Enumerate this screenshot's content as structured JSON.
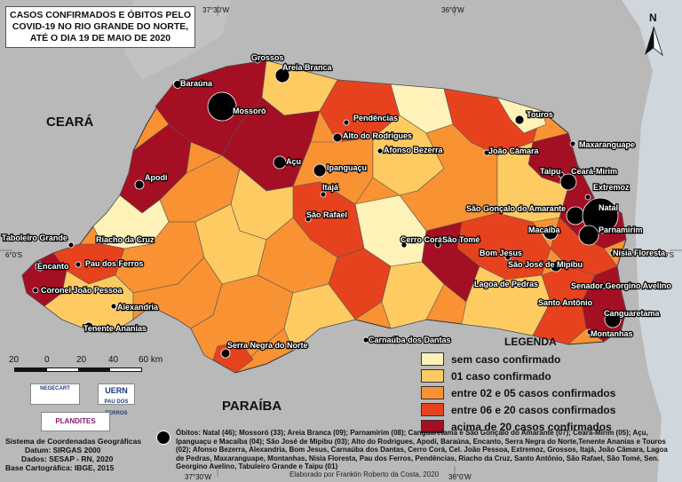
{
  "title": "CASOS CONFIRMADOS E ÓBITOS PELO COVID-19 NO RIO GRANDE DO NORTE, ATÉ O DIA 19 DE MAIO DE 2020",
  "states": {
    "ceara": "CEARÁ",
    "paraiba": "PARAÍBA"
  },
  "coords": {
    "top_left": "37°30'W",
    "top_right": "36°0'W",
    "bottom_left": "37°30'W",
    "bottom_right": "36°0'W",
    "left_lat": "6°0'S",
    "right_lat": "6°0'S"
  },
  "north": "N",
  "scale": {
    "ticks": [
      "20",
      "0",
      "20",
      "40",
      "60 km"
    ]
  },
  "legend": {
    "title": "LEGENDA",
    "items": [
      {
        "label": "sem caso confirmado",
        "color": "#fff2b8"
      },
      {
        "label": "01 caso confirmado",
        "color": "#fecb63"
      },
      {
        "label": "entre 02 e 05 casos confirmados",
        "color": "#f89233"
      },
      {
        "label": "entre 06 e 20 casos confirmados",
        "color": "#e7421e"
      },
      {
        "label": "acima de 20 casos confirmados",
        "color": "#a50f23"
      }
    ]
  },
  "logos": {
    "negecart": "NEGECART",
    "uern": "UERN",
    "uern_sub": "PAU DOS FERROS",
    "plandites": "PLANDITES"
  },
  "sys_info": {
    "line1": "Sistema de Coordenadas Geográficas",
    "line2": "Datum: SIRGAS 2000",
    "line3": "Dados: SESAP - RN, 2020",
    "line4": "Base Cartográfica: IBGE, 2015"
  },
  "obitos_text": "Óbitos: Natal (46); Mossoró (33); Areia Branca (09); Parnamirim (08); Canguaretama e São Gonçalo do Amarante (07); Ceará-Mirim (05); Açu, Ipanguaçu e Macaíba (04); São José de Mipibu (03); Alto do Rodrigues, Apodi, Baraúna, Encanto, Serra Negra do Norte,Tenente Ananias e Touros (02); Afonso Bezerra, Alexandria, Bom Jesus, Carnaúba dos Dantas, Cerro Corá, Cel. João Pessoa, Extremoz, Grossos, Itajá, João Câmara, Lagoa de Pedras, Maxaranguape, Montanhas, Nísia Floresta, Pau dos Ferros, Pendências, Riacho da Cruz, Santo Antônio, São Rafael, São Tomé, Sen. Georgino Avelino, Tabuleiro Grande e Taipu (01)",
  "credit": "Elaborado por Franklin Roberto da Costa, 2020",
  "places": [
    {
      "name": "Grossos"
    },
    {
      "name": "Areia Branca"
    },
    {
      "name": "Baraúna"
    },
    {
      "name": "Mossoró"
    },
    {
      "name": "Pendências"
    },
    {
      "name": "Alto do Rodrigues"
    },
    {
      "name": "Afonso Bezerra"
    },
    {
      "name": "Touros"
    },
    {
      "name": "Maxaranguape"
    },
    {
      "name": "João Câmara"
    },
    {
      "name": "Apodi"
    },
    {
      "name": "Açu"
    },
    {
      "name": "Ipanguaçu"
    },
    {
      "name": "Itajá"
    },
    {
      "name": "Taipu"
    },
    {
      "name": "Ceará-Mirim"
    },
    {
      "name": "Extremoz"
    },
    {
      "name": "São Rafael"
    },
    {
      "name": "São Gonçalo do Amarante"
    },
    {
      "name": "Natal"
    },
    {
      "name": "Parnamirim"
    },
    {
      "name": "Macaíba"
    },
    {
      "name": "Taboleiro Grande"
    },
    {
      "name": "Riacho da Cruz"
    },
    {
      "name": "Cerro Corá"
    },
    {
      "name": "São Tomé"
    },
    {
      "name": "Bom Jesus"
    },
    {
      "name": "Nísia Floresta"
    },
    {
      "name": "São José de Mipibu"
    },
    {
      "name": "Encanto"
    },
    {
      "name": "Pau dos Ferros"
    },
    {
      "name": "Lagoa de Pedras"
    },
    {
      "name": "Senador Georgino Avelino"
    },
    {
      "name": "Coronel João Pessoa"
    },
    {
      "name": "Santo Antônio"
    },
    {
      "name": "Alexandria"
    },
    {
      "name": "Canguaretama"
    },
    {
      "name": "Tenente Ananias"
    },
    {
      "name": "Montanhas"
    },
    {
      "name": "Serra Negra do Norte"
    },
    {
      "name": "Carnaúba dos Dantas"
    }
  ]
}
